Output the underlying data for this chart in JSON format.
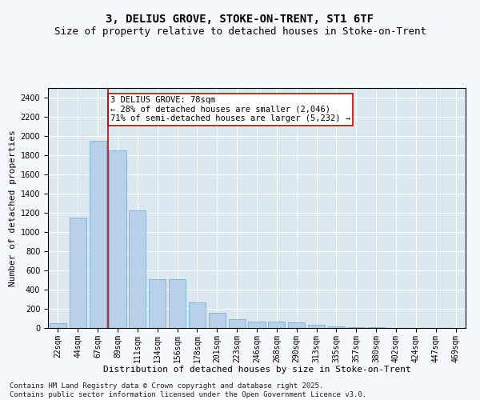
{
  "title_line1": "3, DELIUS GROVE, STOKE-ON-TRENT, ST1 6TF",
  "title_line2": "Size of property relative to detached houses in Stoke-on-Trent",
  "xlabel": "Distribution of detached houses by size in Stoke-on-Trent",
  "ylabel": "Number of detached properties",
  "categories": [
    "22sqm",
    "44sqm",
    "67sqm",
    "89sqm",
    "111sqm",
    "134sqm",
    "156sqm",
    "178sqm",
    "201sqm",
    "223sqm",
    "246sqm",
    "268sqm",
    "290sqm",
    "313sqm",
    "335sqm",
    "357sqm",
    "380sqm",
    "402sqm",
    "424sqm",
    "447sqm",
    "469sqm"
  ],
  "values": [
    50,
    1150,
    1950,
    1850,
    1225,
    510,
    510,
    265,
    160,
    95,
    65,
    65,
    55,
    35,
    20,
    10,
    5,
    3,
    2,
    1,
    1
  ],
  "bar_color": "#b8d0e8",
  "bar_edge_color": "#7aafd4",
  "property_line_color": "#cc0000",
  "annotation_text": "3 DELIUS GROVE: 78sqm\n← 28% of detached houses are smaller (2,046)\n71% of semi-detached houses are larger (5,232) →",
  "annotation_box_color": "#ffffff",
  "annotation_box_edge": "#cc0000",
  "ylim": [
    0,
    2500
  ],
  "yticks": [
    0,
    200,
    400,
    600,
    800,
    1000,
    1200,
    1400,
    1600,
    1800,
    2000,
    2200,
    2400
  ],
  "footnote": "Contains HM Land Registry data © Crown copyright and database right 2025.\nContains public sector information licensed under the Open Government Licence v3.0.",
  "fig_bg_color": "#f5f8fc",
  "plot_bg_color": "#dce8f0",
  "grid_color": "#ffffff",
  "title_fontsize": 10,
  "subtitle_fontsize": 9,
  "axis_label_fontsize": 8,
  "tick_fontsize": 7,
  "annotation_fontsize": 7.5,
  "footnote_fontsize": 6.5
}
